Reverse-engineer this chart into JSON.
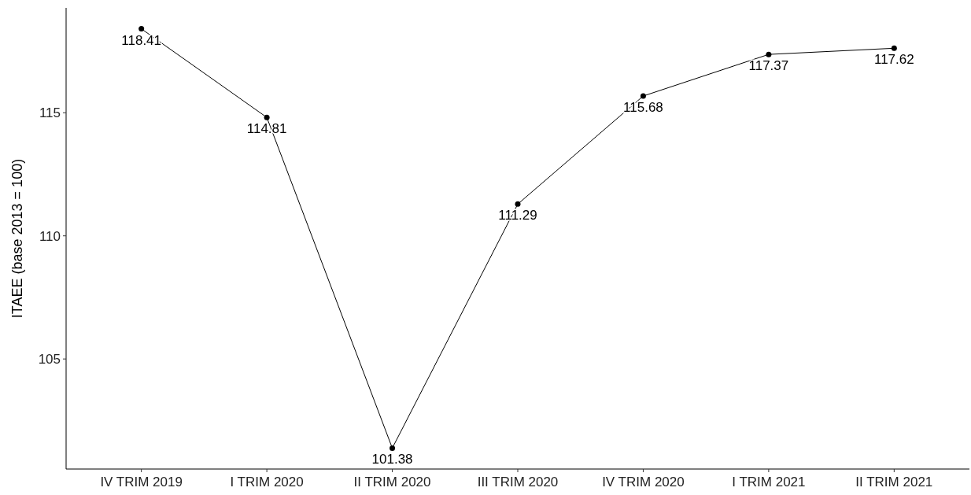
{
  "chart_data": {
    "type": "line",
    "ylabel": "ITAEE (base 2013 = 100)",
    "categories": [
      "IV TRIM 2019",
      "I TRIM 2020",
      "II TRIM 2020",
      "III TRIM 2020",
      "IV TRIM 2020",
      "I TRIM 2021",
      "II TRIM 2021"
    ],
    "series": [
      {
        "color": "#000000",
        "values": [
          118.41,
          114.81,
          101.38,
          111.29,
          115.68,
          117.37,
          117.62
        ]
      }
    ],
    "ylim": [
      100.53,
      119.26
    ],
    "yticks": [
      105,
      110,
      115
    ],
    "grid": false,
    "marker": "circle",
    "line_style": "solid",
    "data_labels": true
  }
}
